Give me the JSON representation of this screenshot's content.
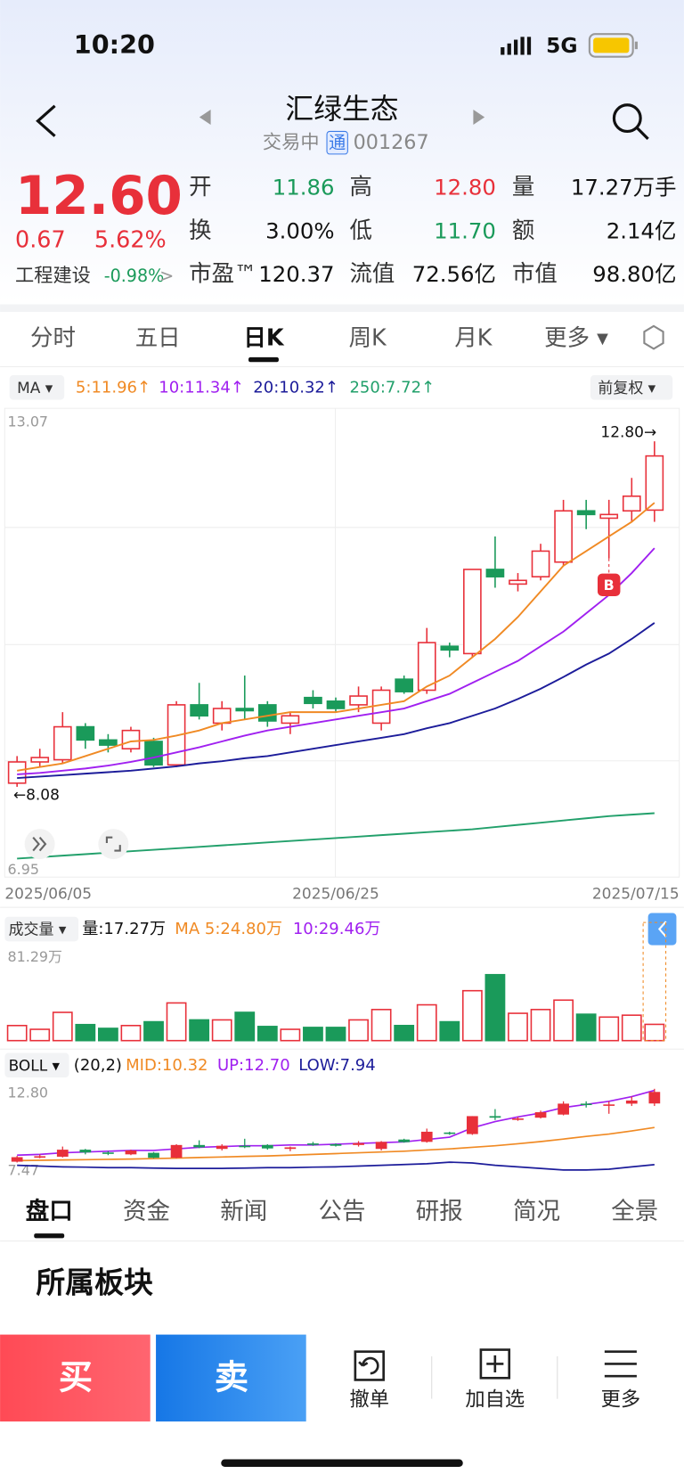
{
  "status": {
    "time": "10:20",
    "network": "5G"
  },
  "header": {
    "name": "汇绿生态",
    "state": "交易中",
    "badge": "通",
    "code": "001267"
  },
  "quote": {
    "price": "12.60",
    "change": "0.67",
    "pct": "5.62%",
    "sector": "工程建设",
    "sector_pct": "-0.98%",
    "more": ">",
    "fields": [
      {
        "label": "开",
        "value": "11.86",
        "color": "#1a9a5a"
      },
      {
        "label": "高",
        "value": "12.80",
        "color": "#e8303a"
      },
      {
        "label": "量",
        "value": "17.27万手",
        "color": "#111"
      },
      {
        "label": "换",
        "value": "3.00%",
        "color": "#111"
      },
      {
        "label": "低",
        "value": "11.70",
        "color": "#1a9a5a"
      },
      {
        "label": "额",
        "value": "2.14亿",
        "color": "#111"
      },
      {
        "label": "市盈™",
        "value": "120.37",
        "color": "#111"
      },
      {
        "label": "流值",
        "value": "72.56亿",
        "color": "#111"
      },
      {
        "label": "市值",
        "value": "98.80亿",
        "color": "#111"
      }
    ]
  },
  "tabs": [
    "分时",
    "五日",
    "日K",
    "周K",
    "月K",
    "更多 ▾"
  ],
  "ma_legend": {
    "label": "MA ▾",
    "items": [
      {
        "text": "5:11.96↑",
        "color": "#f08a24"
      },
      {
        "text": "10:11.34↑",
        "color": "#a020f0"
      },
      {
        "text": "20:10.32↑",
        "color": "#1c1c9a"
      },
      {
        "text": "250:7.72↑",
        "color": "#22a06b"
      }
    ],
    "adjust": "前复权 ▾"
  },
  "kline": {
    "ylim": [
      6.95,
      13.07
    ],
    "yticks": [
      6.95,
      13.07
    ],
    "high_label": "12.80→",
    "low_label": "←8.08",
    "buy_marker": "B",
    "dates": [
      "2025/06/05",
      null,
      null,
      null,
      null,
      null,
      null,
      null,
      null,
      null,
      null,
      null,
      null,
      null,
      "2025/06/25",
      null,
      null,
      null,
      null,
      null,
      null,
      null,
      null,
      null,
      null,
      null,
      null,
      null,
      "2025/07/15"
    ],
    "candles": [
      {
        "o": 8.13,
        "h": 8.5,
        "l": 8.08,
        "c": 8.42
      },
      {
        "o": 8.42,
        "h": 8.6,
        "l": 8.35,
        "c": 8.48
      },
      {
        "o": 8.45,
        "h": 9.1,
        "l": 8.4,
        "c": 8.9
      },
      {
        "o": 8.9,
        "h": 8.95,
        "l": 8.6,
        "c": 8.72
      },
      {
        "o": 8.72,
        "h": 8.8,
        "l": 8.55,
        "c": 8.65
      },
      {
        "o": 8.6,
        "h": 8.9,
        "l": 8.55,
        "c": 8.85
      },
      {
        "o": 8.7,
        "h": 8.75,
        "l": 8.35,
        "c": 8.38
      },
      {
        "o": 8.38,
        "h": 9.25,
        "l": 8.35,
        "c": 9.2
      },
      {
        "o": 9.2,
        "h": 9.5,
        "l": 9.0,
        "c": 9.05
      },
      {
        "o": 8.95,
        "h": 9.25,
        "l": 8.85,
        "c": 9.15
      },
      {
        "o": 9.15,
        "h": 9.6,
        "l": 9.0,
        "c": 9.12
      },
      {
        "o": 9.2,
        "h": 9.25,
        "l": 8.9,
        "c": 8.98
      },
      {
        "o": 8.95,
        "h": 9.1,
        "l": 8.8,
        "c": 9.05
      },
      {
        "o": 9.3,
        "h": 9.4,
        "l": 9.15,
        "c": 9.22
      },
      {
        "o": 9.25,
        "h": 9.3,
        "l": 9.1,
        "c": 9.15
      },
      {
        "o": 9.2,
        "h": 9.45,
        "l": 9.1,
        "c": 9.32
      },
      {
        "o": 8.95,
        "h": 9.45,
        "l": 8.85,
        "c": 9.4
      },
      {
        "o": 9.55,
        "h": 9.6,
        "l": 9.35,
        "c": 9.38
      },
      {
        "o": 9.4,
        "h": 10.25,
        "l": 9.35,
        "c": 10.05
      },
      {
        "o": 10.0,
        "h": 10.05,
        "l": 9.85,
        "c": 9.95
      },
      {
        "o": 9.9,
        "h": 11.05,
        "l": 9.85,
        "c": 11.05
      },
      {
        "o": 11.05,
        "h": 11.5,
        "l": 10.8,
        "c": 10.95
      },
      {
        "o": 10.85,
        "h": 11.0,
        "l": 10.75,
        "c": 10.9
      },
      {
        "o": 10.95,
        "h": 11.4,
        "l": 10.9,
        "c": 11.3
      },
      {
        "o": 11.15,
        "h": 12.0,
        "l": 11.1,
        "c": 11.85
      },
      {
        "o": 11.85,
        "h": 12.0,
        "l": 11.6,
        "c": 11.8
      },
      {
        "o": 11.75,
        "h": 12.0,
        "l": 11.2,
        "c": 11.8
      },
      {
        "o": 11.85,
        "h": 12.3,
        "l": 11.7,
        "c": 12.05
      },
      {
        "o": 11.86,
        "h": 12.8,
        "l": 11.7,
        "c": 12.6
      }
    ],
    "ma5": [
      8.3,
      8.35,
      8.4,
      8.5,
      8.6,
      8.7,
      8.72,
      8.78,
      8.85,
      8.95,
      9.0,
      9.05,
      9.1,
      9.1,
      9.1,
      9.15,
      9.2,
      9.25,
      9.45,
      9.6,
      9.85,
      10.1,
      10.4,
      10.75,
      11.1,
      11.3,
      11.5,
      11.7,
      11.96
    ],
    "ma10": [
      8.25,
      8.27,
      8.3,
      8.33,
      8.37,
      8.42,
      8.48,
      8.55,
      8.62,
      8.7,
      8.78,
      8.85,
      8.9,
      8.95,
      9.0,
      9.05,
      9.1,
      9.15,
      9.25,
      9.35,
      9.5,
      9.65,
      9.8,
      10.0,
      10.2,
      10.45,
      10.7,
      11.0,
      11.34
    ],
    "ma20": [
      8.2,
      8.22,
      8.24,
      8.26,
      8.28,
      8.3,
      8.33,
      8.36,
      8.4,
      8.43,
      8.47,
      8.5,
      8.55,
      8.6,
      8.65,
      8.7,
      8.75,
      8.8,
      8.88,
      8.95,
      9.05,
      9.15,
      9.28,
      9.42,
      9.58,
      9.75,
      9.9,
      10.1,
      10.32
    ],
    "ma250": [
      7.1,
      7.12,
      7.14,
      7.16,
      7.18,
      7.2,
      7.22,
      7.24,
      7.26,
      7.28,
      7.3,
      7.32,
      7.34,
      7.36,
      7.38,
      7.4,
      7.42,
      7.44,
      7.46,
      7.48,
      7.5,
      7.53,
      7.56,
      7.59,
      7.62,
      7.65,
      7.68,
      7.7,
      7.72
    ]
  },
  "volume": {
    "label": "成交量 ▾",
    "amount": "量:17.27万",
    "ma5": "MA 5:24.80万",
    "ma10": "10:29.46万",
    "ylim": [
      0,
      81.29
    ],
    "ytick_label": "81.29万",
    "values": [
      16,
      12,
      30,
      17,
      13,
      16,
      20,
      40,
      22,
      22,
      30,
      15,
      12,
      14,
      14,
      22,
      33,
      16,
      38,
      20,
      53,
      70,
      29,
      33,
      43,
      28,
      25,
      27,
      17.27
    ]
  },
  "boll": {
    "label": "BOLL ▾",
    "params": "(20,2)",
    "mid": "MID:10.32",
    "up": "UP:12.70",
    "low": "LOW:7.94",
    "ylim": [
      7.47,
      12.8
    ],
    "yticks": [
      7.47,
      {
        "value": 12.8,
        "label": "12.80"
      }
    ],
    "up_line": [
      8.55,
      8.6,
      8.7,
      8.75,
      8.8,
      8.85,
      8.85,
      8.95,
      9.05,
      9.1,
      9.15,
      9.15,
      9.2,
      9.2,
      9.25,
      9.3,
      9.35,
      9.4,
      9.55,
      9.7,
      10.3,
      10.7,
      11.0,
      11.25,
      11.6,
      11.8,
      12.0,
      12.3,
      12.7
    ],
    "low_line": [
      7.9,
      7.85,
      7.8,
      7.78,
      7.75,
      7.75,
      7.72,
      7.7,
      7.7,
      7.7,
      7.72,
      7.75,
      7.75,
      7.78,
      7.8,
      7.85,
      7.9,
      7.95,
      8.0,
      8.1,
      8.05,
      7.9,
      7.8,
      7.7,
      7.6,
      7.6,
      7.65,
      7.8,
      7.94
    ]
  },
  "bottom_tabs": [
    "盘口",
    "资金",
    "新闻",
    "公告",
    "研报",
    "简况",
    "全景"
  ],
  "section": "所属板块",
  "actions": {
    "buy": "买",
    "sell": "卖",
    "items": [
      "撤单",
      "加自选",
      "更多"
    ]
  }
}
